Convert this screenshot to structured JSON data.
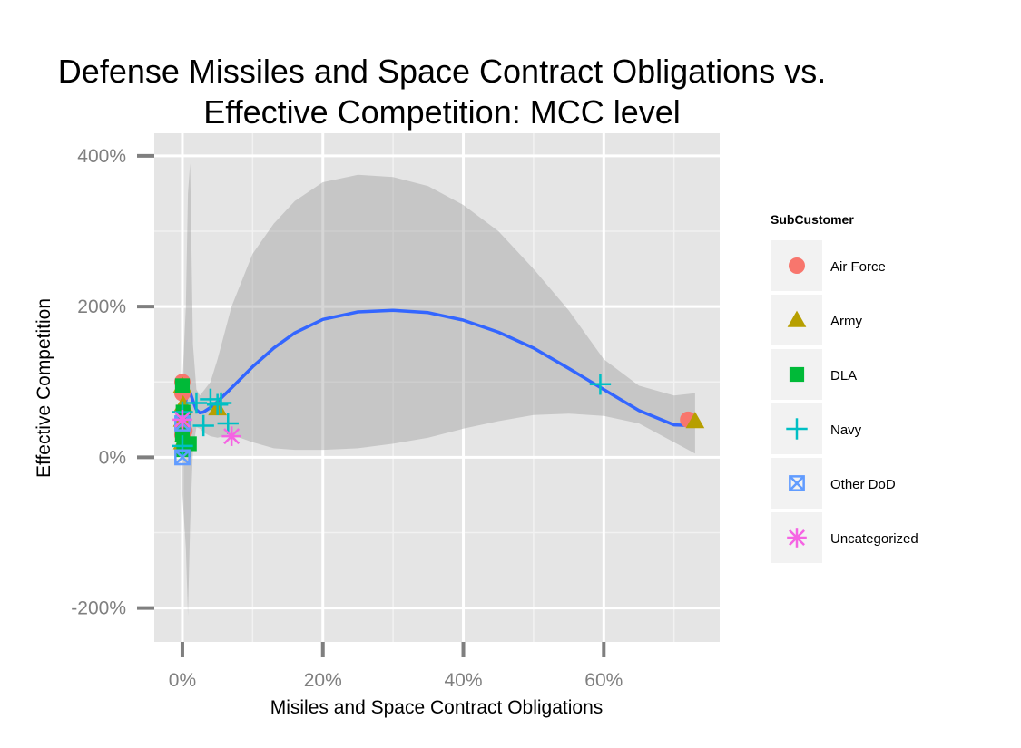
{
  "chart_data": {
    "type": "scatter",
    "title_line1": "Defense Missiles and Space Contract Obligations vs.",
    "title_line2": "Effective Competition: MCC level",
    "xlabel": "Misiles and Space Contract Obligations",
    "ylabel": "Effective Competition",
    "xlim": [
      -0.04,
      0.765
    ],
    "ylim": [
      -2.45,
      4.3
    ],
    "x_ticks": [
      {
        "value": 0.0,
        "label": "0%"
      },
      {
        "value": 0.2,
        "label": "20%"
      },
      {
        "value": 0.4,
        "label": "40%"
      },
      {
        "value": 0.6,
        "label": "60%"
      }
    ],
    "y_ticks": [
      {
        "value": 4.0,
        "label": "400%"
      },
      {
        "value": 2.0,
        "label": "200%"
      },
      {
        "value": 0.0,
        "label": "0%"
      },
      {
        "value": -2.0,
        "label": "-200%"
      }
    ],
    "grid": true,
    "legend_position": "right",
    "legend_title": "SubCustomer",
    "series": [
      {
        "name": "Air Force",
        "shape": "circle",
        "color": "#F8766D",
        "points": [
          [
            0.0,
            1.0
          ],
          [
            0.0,
            0.85
          ],
          [
            0.002,
            0.6
          ],
          [
            0.001,
            0.45
          ],
          [
            0.003,
            0.35
          ],
          [
            0.0,
            0.3
          ],
          [
            0.72,
            0.5
          ]
        ]
      },
      {
        "name": "Army",
        "shape": "triangle",
        "color": "#B79F00",
        "points": [
          [
            0.0,
            0.95
          ],
          [
            0.001,
            0.7
          ],
          [
            0.0,
            0.5
          ],
          [
            0.002,
            0.3
          ],
          [
            0.0,
            0.2
          ],
          [
            0.05,
            0.65
          ],
          [
            0.73,
            0.48
          ]
        ]
      },
      {
        "name": "DLA",
        "shape": "square",
        "color": "#00BA38",
        "points": [
          [
            0.0,
            0.95
          ],
          [
            0.001,
            0.6
          ],
          [
            0.0,
            0.3
          ],
          [
            0.002,
            0.1
          ],
          [
            0.01,
            0.18
          ]
        ]
      },
      {
        "name": "Navy",
        "shape": "plus",
        "color": "#00BFC4",
        "points": [
          [
            0.0,
            0.6
          ],
          [
            0.0,
            0.15
          ],
          [
            0.02,
            0.72
          ],
          [
            0.03,
            0.42
          ],
          [
            0.04,
            0.77
          ],
          [
            0.05,
            0.7
          ],
          [
            0.055,
            0.72
          ],
          [
            0.065,
            0.45
          ],
          [
            0.595,
            0.97
          ]
        ]
      },
      {
        "name": "Other DoD",
        "shape": "boxx",
        "color": "#619CFF",
        "points": [
          [
            0.0,
            0.0
          ],
          [
            0.0,
            0.45
          ]
        ]
      },
      {
        "name": "Uncategorized",
        "shape": "star",
        "color": "#F564E3",
        "points": [
          [
            0.0,
            0.5
          ],
          [
            0.07,
            0.28
          ]
        ]
      }
    ],
    "smooth_line": {
      "color": "#3366FF",
      "x": [
        0.0,
        0.005,
        0.008,
        0.011,
        0.015,
        0.02,
        0.025,
        0.03,
        0.04,
        0.05,
        0.07,
        0.1,
        0.13,
        0.16,
        0.2,
        0.25,
        0.3,
        0.35,
        0.4,
        0.45,
        0.5,
        0.55,
        0.6,
        0.65,
        0.7,
        0.73
      ],
      "y": [
        0.4,
        0.75,
        0.88,
        0.86,
        0.75,
        0.63,
        0.59,
        0.6,
        0.66,
        0.74,
        0.92,
        1.2,
        1.45,
        1.65,
        1.83,
        1.93,
        1.95,
        1.92,
        1.82,
        1.66,
        1.45,
        1.18,
        0.9,
        0.62,
        0.43,
        0.42
      ]
    },
    "confidence_band": {
      "color": "#999999",
      "x": [
        0.0,
        0.005,
        0.008,
        0.011,
        0.015,
        0.02,
        0.025,
        0.03,
        0.04,
        0.05,
        0.07,
        0.1,
        0.13,
        0.16,
        0.2,
        0.25,
        0.3,
        0.35,
        0.4,
        0.45,
        0.5,
        0.55,
        0.6,
        0.65,
        0.7,
        0.73
      ],
      "ymin": [
        -0.5,
        -1.2,
        -2.1,
        -0.9,
        0.1,
        0.4,
        0.38,
        0.33,
        0.28,
        0.26,
        0.3,
        0.2,
        0.12,
        0.1,
        0.1,
        0.12,
        0.18,
        0.26,
        0.38,
        0.48,
        0.56,
        0.58,
        0.55,
        0.45,
        0.2,
        0.05
      ],
      "ymax": [
        1.0,
        2.0,
        3.5,
        3.9,
        1.5,
        0.9,
        0.82,
        0.88,
        1.0,
        1.3,
        2.0,
        2.7,
        3.1,
        3.4,
        3.65,
        3.75,
        3.72,
        3.6,
        3.35,
        3.0,
        2.5,
        1.95,
        1.3,
        0.95,
        0.82,
        0.85
      ]
    }
  }
}
